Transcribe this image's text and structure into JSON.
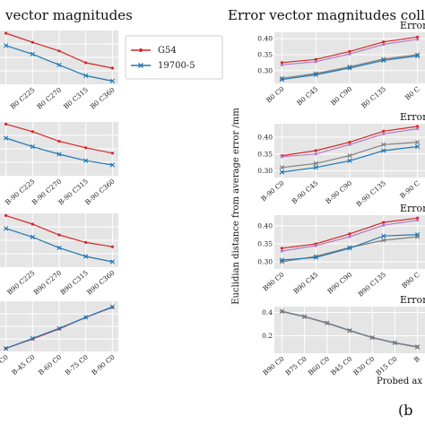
{
  "figure": {
    "left_title": "vector magnitudes",
    "right_title": "Error vector magnitudes collect",
    "panel_label": "(b",
    "ylabel": "Euclidian distance from average error /mm",
    "xlabel": "Probed ax",
    "legend": [
      {
        "name": "G54",
        "color": "#d62728",
        "marker": "dot"
      },
      {
        "name": "19700-5",
        "color": "#1f77b4",
        "marker": "x"
      }
    ]
  },
  "chart_data": [
    {
      "type": "line",
      "panel": "left-1",
      "categories": [
        "",
        "B0 C225",
        "B0 C270",
        "B0 C315",
        "B0 C360"
      ],
      "series": [
        {
          "name": "G54",
          "color": "#d62728",
          "values": [
            0.95,
            0.78,
            0.62,
            0.4,
            0.3
          ]
        },
        {
          "name": "19700-5",
          "color": "#1f77b4",
          "values": [
            0.72,
            0.56,
            0.36,
            0.16,
            0.06
          ]
        }
      ],
      "ylim": [
        0,
        1
      ]
    },
    {
      "type": "line",
      "panel": "left-2",
      "categories": [
        "",
        "B-90 C225",
        "B-90 C270",
        "B-90 C315",
        "B-90 C360"
      ],
      "series": [
        {
          "name": "G54",
          "color": "#d62728",
          "values": [
            0.96,
            0.82,
            0.64,
            0.52,
            0.42
          ]
        },
        {
          "name": "19700-5",
          "color": "#1f77b4",
          "values": [
            0.7,
            0.54,
            0.4,
            0.28,
            0.2
          ]
        }
      ],
      "ylim": [
        0,
        1
      ]
    },
    {
      "type": "line",
      "panel": "left-3",
      "categories": [
        "",
        "B90 C225",
        "B90 C270",
        "B90 C315",
        "B90 C360"
      ],
      "series": [
        {
          "name": "G54",
          "color": "#d62728",
          "values": [
            0.96,
            0.8,
            0.6,
            0.46,
            0.38
          ]
        },
        {
          "name": "19700-5",
          "color": "#1f77b4",
          "values": [
            0.72,
            0.56,
            0.36,
            0.2,
            0.1
          ]
        }
      ],
      "ylim": [
        0,
        1
      ]
    },
    {
      "type": "line",
      "panel": "left-4",
      "categories": [
        "B30 C0",
        "B-45 C0",
        "B-60 C0",
        "B-75 C0",
        "B-90 C0"
      ],
      "series": [
        {
          "name": "G54",
          "color": "#d62728",
          "values": [
            0.06,
            0.25,
            0.45,
            0.68,
            0.88
          ]
        },
        {
          "name": "19700-5",
          "color": "#1f77b4",
          "values": [
            0.06,
            0.26,
            0.46,
            0.68,
            0.89
          ]
        }
      ],
      "ylim": [
        0,
        1
      ]
    },
    {
      "type": "line",
      "panel": "right-1",
      "subtitle": "Error v",
      "categories": [
        "B0 C0",
        "B0 C45",
        "B0 C90",
        "B0 C135",
        "B0 C"
      ],
      "yticks": [
        0.3,
        0.35,
        0.4
      ],
      "series": [
        {
          "name": "G54",
          "color": "#d62728",
          "values": [
            0.325,
            0.335,
            0.36,
            0.39,
            0.405
          ]
        },
        {
          "name": "",
          "color": "#b07cc6",
          "values": [
            0.318,
            0.328,
            0.352,
            0.382,
            0.398
          ]
        },
        {
          "name": "",
          "color": "#7f7f7f",
          "values": [
            0.276,
            0.291,
            0.312,
            0.336,
            0.35
          ]
        },
        {
          "name": "19700-5",
          "color": "#1f77b4",
          "values": [
            0.272,
            0.287,
            0.308,
            0.332,
            0.346
          ]
        }
      ],
      "ylim": [
        0.26,
        0.42
      ]
    },
    {
      "type": "line",
      "panel": "right-2",
      "subtitle": "Error",
      "categories": [
        "B-90 C0",
        "B-90 C45",
        "B-90 C90",
        "B-90 C135",
        "B-90 C"
      ],
      "yticks": [
        0.3,
        0.35,
        0.4
      ],
      "series": [
        {
          "name": "G54",
          "color": "#d62728",
          "values": [
            0.345,
            0.36,
            0.385,
            0.418,
            0.432
          ]
        },
        {
          "name": "",
          "color": "#b07cc6",
          "values": [
            0.342,
            0.35,
            0.378,
            0.41,
            0.425
          ]
        },
        {
          "name": "",
          "color": "#7f7f7f",
          "values": [
            0.31,
            0.322,
            0.345,
            0.378,
            0.385
          ]
        },
        {
          "name": "19700-5",
          "color": "#1f77b4",
          "values": [
            0.296,
            0.31,
            0.33,
            0.36,
            0.372
          ]
        }
      ],
      "ylim": [
        0.28,
        0.44
      ]
    },
    {
      "type": "line",
      "panel": "right-3",
      "subtitle": "Error",
      "categories": [
        "B90 C0",
        "B90 C45",
        "B90 C90",
        "B90 C135",
        "B90 C"
      ],
      "yticks": [
        0.3,
        0.35,
        0.4
      ],
      "series": [
        {
          "name": "G54",
          "color": "#d62728",
          "values": [
            0.338,
            0.35,
            0.378,
            0.41,
            0.422
          ]
        },
        {
          "name": "",
          "color": "#b07cc6",
          "values": [
            0.33,
            0.345,
            0.37,
            0.402,
            0.416
          ]
        },
        {
          "name": "",
          "color": "#7f7f7f",
          "values": [
            0.3,
            0.315,
            0.34,
            0.36,
            0.37
          ]
        },
        {
          "name": "19700-5",
          "color": "#1f77b4",
          "values": [
            0.305,
            0.312,
            0.338,
            0.372,
            0.376
          ]
        }
      ],
      "ylim": [
        0.28,
        0.43
      ]
    },
    {
      "type": "line",
      "panel": "right-4",
      "subtitle": "Error",
      "categories": [
        "B90 C0",
        "B75 C0",
        "B60 C0",
        "B45 C0",
        "B30 C0",
        "B15 C0",
        "B"
      ],
      "yticks": [
        0.2,
        0.4
      ],
      "series": [
        {
          "name": "G54",
          "color": "#d62728",
          "values": [
            0.41,
            0.365,
            0.31,
            0.245,
            0.185,
            0.14,
            0.105
          ]
        },
        {
          "name": "19700-5",
          "color": "#1f77b4",
          "values": [
            0.41,
            0.365,
            0.31,
            0.245,
            0.185,
            0.14,
            0.105
          ]
        },
        {
          "name": "",
          "color": "#7f7f7f",
          "values": [
            0.408,
            0.363,
            0.308,
            0.243,
            0.183,
            0.138,
            0.103
          ]
        }
      ],
      "ylim": [
        0.05,
        0.45
      ]
    }
  ]
}
